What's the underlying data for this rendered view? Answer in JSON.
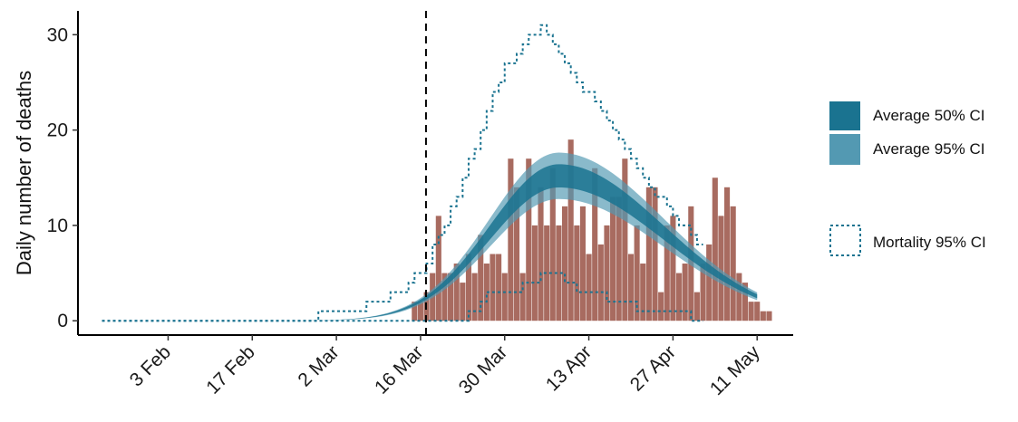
{
  "colors": {
    "bars": "#a86b60",
    "ci50": "#1a7390",
    "ci95": "#5399b2",
    "mean_line": "#1a6c8a",
    "mortality_ci": "#1a7390",
    "intervention_line": "#000000"
  },
  "chart_data": {
    "type": "bar",
    "ylabel": "Daily number of deaths",
    "xlabel": "",
    "ylim": [
      -1.5,
      32.5
    ],
    "yticks": [
      0,
      10,
      20,
      30
    ],
    "x_start_date": "2020-01-23",
    "xlim": [
      "2020-01-19",
      "2020-05-17"
    ],
    "xtick_dates": [
      "2020-02-03",
      "2020-02-17",
      "2020-03-02",
      "2020-03-16",
      "2020-03-30",
      "2020-04-13",
      "2020-04-27",
      "2020-05-11"
    ],
    "xtick_labels": [
      "3 Feb",
      "17 Feb",
      "2 Mar",
      "16 Mar",
      "30 Mar",
      "13 Apr",
      "27 Apr",
      "11 May"
    ],
    "intervention_date": "2020-03-16",
    "grid": false,
    "legend_position": "right",
    "legend": [
      {
        "label": "Average 50% CI",
        "style": "ci50-fill"
      },
      {
        "label": "Average 95% CI",
        "style": "ci95-fill"
      },
      {
        "label": "Mortality 95% CI",
        "style": "dotted-box"
      }
    ],
    "deaths": {
      "start_date": "2020-03-15",
      "values": [
        2,
        2,
        3,
        5,
        11,
        5,
        5,
        6,
        4,
        7,
        5,
        9,
        6,
        7,
        7,
        5,
        17,
        14,
        5,
        17,
        10,
        14,
        10,
        16,
        10,
        12,
        19,
        10,
        12,
        7,
        16,
        8,
        10,
        13,
        13,
        17,
        7,
        10,
        6,
        14,
        14,
        3,
        10,
        11,
        5,
        6,
        12,
        3,
        6,
        8,
        15,
        11,
        14,
        12,
        5,
        4,
        2,
        2,
        1,
        1
      ]
    },
    "model": {
      "start_date": "2020-01-23",
      "end_date": "2020-05-11",
      "peak_date": "2020-04-08",
      "peak_mean": 15.2,
      "sd_days_left": 11.5,
      "sd_days_right": 17.5
    },
    "mortality_ci": {
      "start_date": "2020-01-23",
      "upper": [
        0,
        0,
        0,
        0,
        0,
        0,
        0,
        0,
        0,
        0,
        0,
        0,
        0,
        0,
        0,
        0,
        0,
        0,
        0,
        0,
        0,
        0,
        0,
        0,
        0,
        0,
        0,
        0,
        0,
        0,
        0,
        0,
        0,
        0,
        0,
        0,
        1,
        1,
        1,
        1,
        1,
        1,
        1,
        1,
        2,
        2,
        2,
        2,
        3,
        3,
        3,
        4,
        5,
        5,
        6,
        8,
        9,
        10,
        12,
        13,
        15,
        17,
        18,
        20,
        22,
        24,
        25,
        27,
        27,
        28,
        29,
        30,
        30,
        31,
        30,
        29,
        28,
        27,
        26,
        25,
        24,
        24,
        23,
        22,
        21,
        20,
        19,
        18,
        17,
        16,
        15,
        14,
        13,
        13,
        12,
        11,
        10,
        10,
        9,
        8
      ],
      "lower": [
        0,
        0,
        0,
        0,
        0,
        0,
        0,
        0,
        0,
        0,
        0,
        0,
        0,
        0,
        0,
        0,
        0,
        0,
        0,
        0,
        0,
        0,
        0,
        0,
        0,
        0,
        0,
        0,
        0,
        0,
        0,
        0,
        0,
        0,
        0,
        0,
        0,
        0,
        0,
        0,
        0,
        0,
        0,
        0,
        0,
        0,
        0,
        0,
        0,
        0,
        0,
        0,
        0,
        0,
        0,
        0,
        0,
        0,
        0,
        0,
        0,
        1,
        1,
        2,
        3,
        3,
        3,
        3,
        3,
        3,
        4,
        4,
        4,
        5,
        5,
        5,
        5,
        4,
        4,
        3,
        3,
        3,
        3,
        3,
        2,
        2,
        2,
        2,
        2,
        1,
        1,
        1,
        1,
        1,
        1,
        1,
        1,
        1,
        0,
        0
      ]
    }
  }
}
